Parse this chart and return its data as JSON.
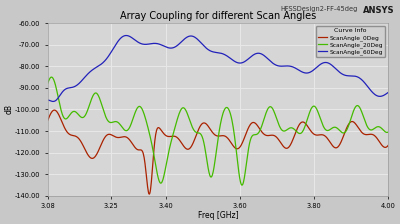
{
  "title": "Array Coupling for different Scan Angles",
  "subtitle": "HFSSDesign2-FF-45deg",
  "xlabel": "Freq [GHz]",
  "ylabel": "dB",
  "xlim": [
    3.08,
    4.0
  ],
  "ylim": [
    -140,
    -60
  ],
  "yticks": [
    -140,
    -130,
    -120,
    -110,
    -100,
    -90,
    -80,
    -70,
    -60
  ],
  "ytick_labels": [
    "-140.00",
    "-130.00",
    "-120.00",
    "-110.00",
    "-100.00",
    "-90.00",
    "-80.00",
    "-70.00",
    "-60.00"
  ],
  "xticks": [
    3.08,
    3.25,
    3.4,
    3.6,
    3.8,
    4.0
  ],
  "xtick_labels": [
    "3.08",
    "3.25",
    "3.40",
    "3.60",
    "3.80",
    "4.00"
  ],
  "bg_color": "#c8c8c8",
  "plot_bg_color": "#d6d6d6",
  "grid_color": "#e8e8e8",
  "title_color": "#000000",
  "tick_color": "#000000",
  "legend_labels": [
    "Curve Info",
    "ScanAngle_0Deg",
    "ScanAngle_20Deg",
    "ScanAngle_60Deg"
  ],
  "line_colors": [
    "#aa2200",
    "#44bb00",
    "#2222bb"
  ],
  "ansys_label": "ANSYS",
  "lw": 0.9
}
